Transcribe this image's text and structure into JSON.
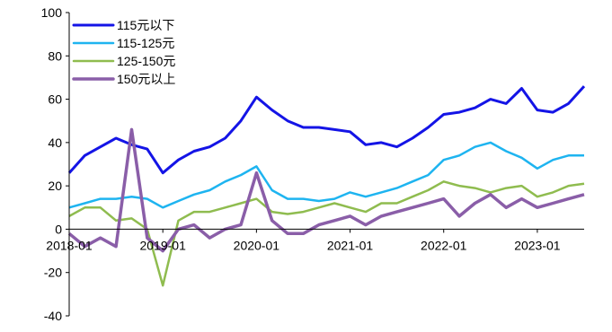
{
  "chart_data": {
    "type": "line",
    "title": "",
    "xlabel": "",
    "ylabel": "",
    "ylim": [
      -40,
      100
    ],
    "yticks": [
      "100",
      "80",
      "60",
      "40",
      "20",
      "0",
      "-20",
      "-40"
    ],
    "xticks": [
      "2018-01",
      "2019-01",
      "2020-01",
      "2021-01",
      "2022-01",
      "2023-01"
    ],
    "x_range": [
      "2018-01",
      "2023-07"
    ],
    "grid": false,
    "legend_position": "top-left",
    "x": [
      "2018-01",
      "2018-03",
      "2018-05",
      "2018-07",
      "2018-09",
      "2018-11",
      "2019-01",
      "2019-03",
      "2019-05",
      "2019-07",
      "2019-09",
      "2019-11",
      "2020-01",
      "2020-03",
      "2020-05",
      "2020-07",
      "2020-09",
      "2020-11",
      "2021-01",
      "2021-03",
      "2021-05",
      "2021-07",
      "2021-09",
      "2021-11",
      "2022-01",
      "2022-03",
      "2022-05",
      "2022-07",
      "2022-09",
      "2022-11",
      "2023-01",
      "2023-03",
      "2023-05",
      "2023-07"
    ],
    "series": [
      {
        "name": "115元以下",
        "color": "#1414e6",
        "values": [
          26,
          34,
          38,
          42,
          39,
          37,
          26,
          32,
          36,
          38,
          42,
          50,
          61,
          55,
          50,
          47,
          47,
          46,
          45,
          39,
          40,
          38,
          42,
          47,
          53,
          54,
          56,
          60,
          58,
          65,
          55,
          54,
          58,
          66
        ]
      },
      {
        "name": "115-125元",
        "color": "#1eb4f0",
        "values": [
          10,
          12,
          14,
          14,
          15,
          14,
          10,
          13,
          16,
          18,
          22,
          25,
          29,
          18,
          14,
          14,
          13,
          14,
          17,
          15,
          17,
          19,
          22,
          25,
          32,
          34,
          38,
          40,
          36,
          33,
          28,
          32,
          34,
          34
        ]
      },
      {
        "name": "125-150元",
        "color": "#8fbc4f",
        "values": [
          6,
          10,
          10,
          4,
          5,
          0,
          -26,
          4,
          8,
          8,
          10,
          12,
          14,
          8,
          7,
          8,
          10,
          12,
          10,
          8,
          12,
          12,
          15,
          18,
          22,
          20,
          19,
          17,
          19,
          20,
          15,
          17,
          20,
          21
        ]
      },
      {
        "name": "150元以上",
        "color": "#8a5ea8",
        "values": [
          -2,
          -8,
          -4,
          -8,
          46,
          -4,
          -10,
          0,
          2,
          -4,
          0,
          2,
          26,
          4,
          -2,
          -2,
          2,
          4,
          6,
          2,
          6,
          8,
          10,
          12,
          14,
          6,
          12,
          16,
          10,
          14,
          10,
          12,
          14,
          16
        ]
      }
    ]
  }
}
